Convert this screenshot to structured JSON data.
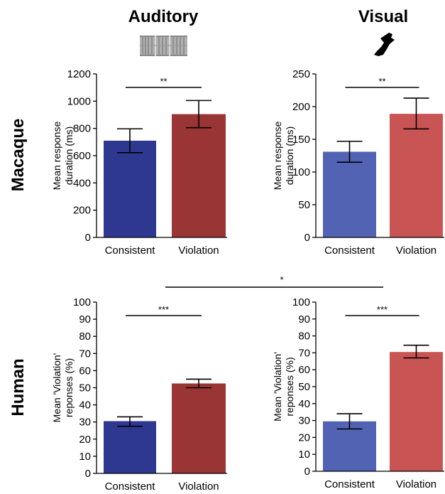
{
  "column_titles": [
    "Auditory",
    "Visual"
  ],
  "row_titles": [
    "Macaque",
    "Human"
  ],
  "colors": {
    "auditory_consistent": "#2e3891",
    "auditory_violation": "#9a3535",
    "visual_consistent": "#5163b2",
    "visual_violation": "#c95454"
  },
  "icons": [
    "sound-waveform-icon",
    "bird-silhouette-icon"
  ],
  "cross_significance": "*",
  "chart_data": [
    {
      "type": "bar",
      "title": "",
      "modality": "Auditory",
      "species": "Macaque",
      "categories": [
        "Consistent",
        "Violation"
      ],
      "values": [
        710,
        905
      ],
      "error": [
        [
          622,
          797
        ],
        [
          805,
          1005
        ]
      ],
      "ylabel": "Mean response duration (ms)",
      "ylabel_lines": [
        "Mean response",
        "duration (ms)"
      ],
      "ylim": [
        0,
        1200
      ],
      "yticks": [
        0,
        200,
        400,
        600,
        800,
        1000,
        1200
      ],
      "significance": "**",
      "colors": [
        "#2e3891",
        "#9a3535"
      ]
    },
    {
      "type": "bar",
      "title": "",
      "modality": "Visual",
      "species": "Macaque",
      "categories": [
        "Consistent",
        "Violation"
      ],
      "values": [
        131,
        189
      ],
      "error": [
        [
          115,
          147
        ],
        [
          166,
          213
        ]
      ],
      "ylabel": "Mean response duration (ms)",
      "ylabel_lines": [
        "Mean response",
        "duration (ms)"
      ],
      "ylim": [
        0,
        250
      ],
      "yticks": [
        0,
        50,
        100,
        150,
        200,
        250
      ],
      "significance": "**",
      "colors": [
        "#5163b2",
        "#c95454"
      ]
    },
    {
      "type": "bar",
      "title": "",
      "modality": "Auditory",
      "species": "Human",
      "categories": [
        "Consistent",
        "Violation"
      ],
      "values": [
        30.5,
        52.5
      ],
      "error": [
        [
          27.5,
          33
        ],
        [
          50,
          55
        ]
      ],
      "ylabel": "Mean 'Violation' reponses (%)",
      "ylabel_lines": [
        "Mean 'Violation'",
        "reponses (%)"
      ],
      "ylim": [
        0,
        100
      ],
      "yticks": [
        0,
        10,
        20,
        30,
        40,
        50,
        60,
        70,
        80,
        90,
        100
      ],
      "significance": "***",
      "colors": [
        "#2e3891",
        "#9a3535"
      ]
    },
    {
      "type": "bar",
      "title": "",
      "modality": "Visual",
      "species": "Human",
      "categories": [
        "Consistent",
        "Violation"
      ],
      "values": [
        29.5,
        70.5
      ],
      "error": [
        [
          25,
          34
        ],
        [
          67,
          74.5
        ]
      ],
      "ylabel": "Mean 'Violation' reponses (%)",
      "ylabel_lines": [
        "Mean 'Violation'",
        "reponses (%)"
      ],
      "ylim": [
        0,
        100
      ],
      "yticks": [
        0,
        10,
        20,
        30,
        40,
        50,
        60,
        70,
        80,
        90,
        100
      ],
      "significance": "***",
      "colors": [
        "#5163b2",
        "#c95454"
      ]
    }
  ]
}
